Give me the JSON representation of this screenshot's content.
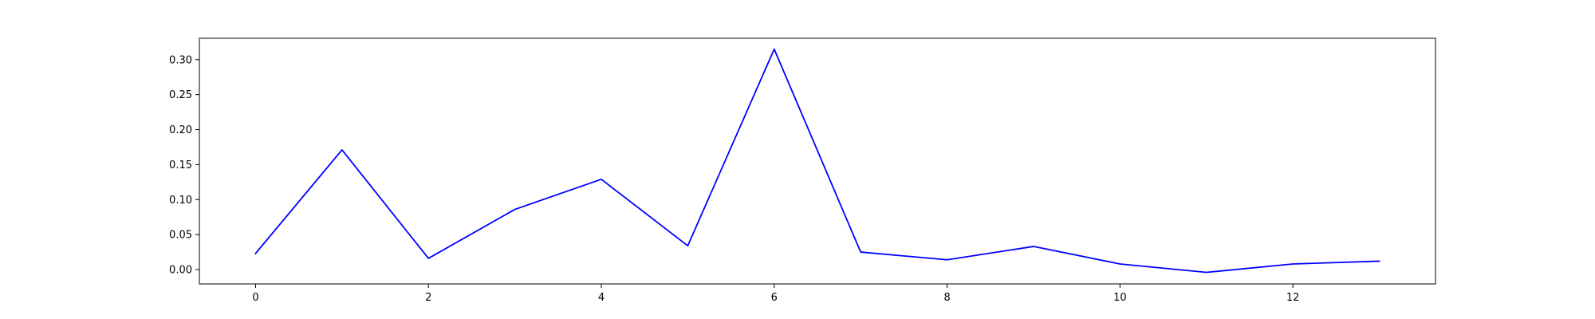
{
  "chart_data": {
    "type": "line",
    "title": "",
    "xlabel": "",
    "ylabel": "",
    "xlim": [
      -0.65,
      13.65
    ],
    "ylim": [
      -0.0205,
      0.3305
    ],
    "x_ticks": [
      0,
      2,
      4,
      6,
      8,
      10,
      12
    ],
    "x_tick_labels": [
      "0",
      "2",
      "4",
      "6",
      "8",
      "10",
      "12"
    ],
    "y_ticks": [
      0.0,
      0.05,
      0.1,
      0.15,
      0.2,
      0.25,
      0.3
    ],
    "y_tick_labels": [
      "0.00",
      "0.05",
      "0.10",
      "0.15",
      "0.20",
      "0.25",
      "0.30"
    ],
    "grid": false,
    "legend": "none",
    "series": [
      {
        "color": "#0000ff",
        "x": [
          0,
          1,
          2,
          3,
          4,
          5,
          6,
          7,
          8,
          9,
          10,
          11,
          12,
          13
        ],
        "y": [
          0.023,
          0.171,
          0.016,
          0.086,
          0.129,
          0.034,
          0.315,
          0.025,
          0.014,
          0.033,
          0.008,
          -0.004,
          0.008,
          0.012
        ]
      }
    ]
  }
}
